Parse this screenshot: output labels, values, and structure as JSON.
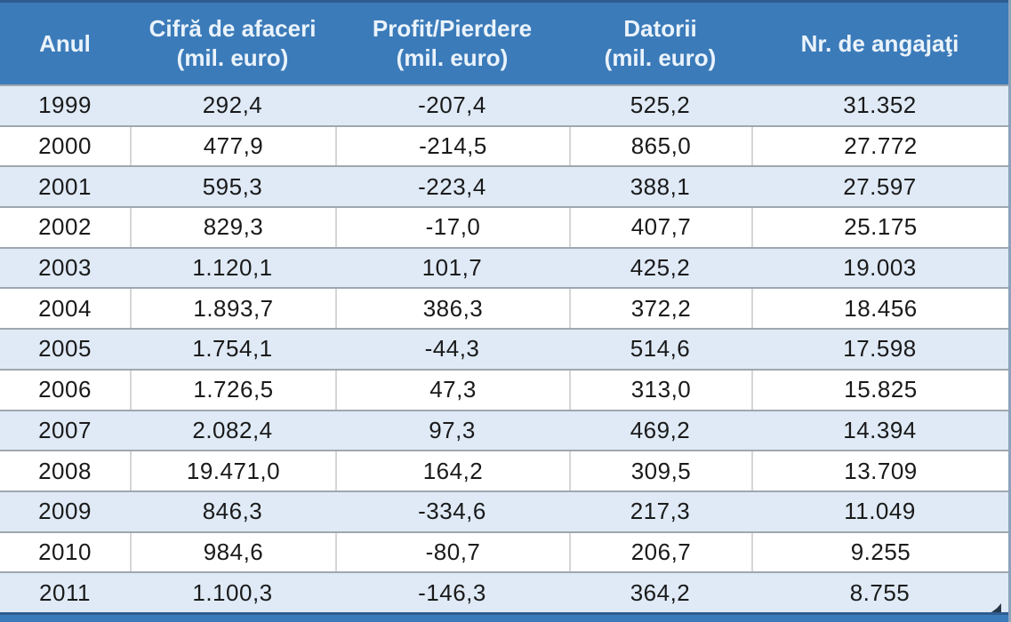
{
  "table": {
    "columns": [
      {
        "label": "Anul",
        "sub": ""
      },
      {
        "label": "Cifră de afaceri",
        "sub": "(mil. euro)"
      },
      {
        "label": "Profit/Pierdere",
        "sub": "(mil. euro)"
      },
      {
        "label": "Datorii",
        "sub": "(mil. euro)"
      },
      {
        "label": "Nr. de angajaţi",
        "sub": ""
      }
    ],
    "rows": [
      [
        "1999",
        "292,4",
        "-207,4",
        "525,2",
        "31.352"
      ],
      [
        "2000",
        "477,9",
        "-214,5",
        "865,0",
        "27.772"
      ],
      [
        "2001",
        "595,3",
        "-223,4",
        "388,1",
        "27.597"
      ],
      [
        "2002",
        "829,3",
        "-17,0",
        "407,7",
        "25.175"
      ],
      [
        "2003",
        "1.120,1",
        "101,7",
        "425,2",
        "19.003"
      ],
      [
        "2004",
        "1.893,7",
        "386,3",
        "372,2",
        "18.456"
      ],
      [
        "2005",
        "1.754,1",
        "-44,3",
        "514,6",
        "17.598"
      ],
      [
        "2006",
        "1.726,5",
        "47,3",
        "313,0",
        "15.825"
      ],
      [
        "2007",
        "2.082,4",
        "97,3",
        "469,2",
        "14.394"
      ],
      [
        "2008",
        "19.471,0",
        "164,2",
        "309,5",
        "13.709"
      ],
      [
        "2009",
        "846,3",
        "-334,6",
        "217,3",
        "11.049"
      ],
      [
        "2010",
        "984,6",
        "-80,7",
        "206,7",
        "9.255"
      ],
      [
        "2011",
        "1.100,3",
        "-146,3",
        "364,2",
        "8.755"
      ]
    ]
  },
  "chart_data": {
    "type": "table",
    "title": "",
    "columns": [
      "Anul",
      "Cifră de afaceri (mil. euro)",
      "Profit/Pierdere (mil. euro)",
      "Datorii (mil. euro)",
      "Nr. de angajaţi"
    ],
    "categories": [
      1999,
      2000,
      2001,
      2002,
      2003,
      2004,
      2005,
      2006,
      2007,
      2008,
      2009,
      2010,
      2011
    ],
    "series": [
      {
        "name": "Cifră de afaceri (mil. euro)",
        "values": [
          292.4,
          477.9,
          595.3,
          829.3,
          1120.1,
          1893.7,
          1754.1,
          1726.5,
          2082.4,
          19471.0,
          846.3,
          984.6,
          1100.3
        ]
      },
      {
        "name": "Profit/Pierdere (mil. euro)",
        "values": [
          -207.4,
          -214.5,
          -223.4,
          -17.0,
          101.7,
          386.3,
          -44.3,
          47.3,
          97.3,
          164.2,
          -334.6,
          -80.7,
          -146.3
        ]
      },
      {
        "name": "Datorii (mil. euro)",
        "values": [
          525.2,
          865.0,
          388.1,
          407.7,
          425.2,
          372.2,
          514.6,
          313.0,
          469.2,
          309.5,
          217.3,
          206.7,
          364.2
        ]
      },
      {
        "name": "Nr. de angajaţi",
        "values": [
          31352,
          27772,
          27597,
          25175,
          19003,
          18456,
          17598,
          15825,
          14394,
          13709,
          11049,
          9255,
          8755
        ]
      }
    ],
    "layout": {
      "header_position": "top",
      "zebra_striping": true,
      "grid": true
    }
  },
  "colors": {
    "header_bg": "#3C7BB9",
    "header_text": "#EAF3FB",
    "row_alt_bg": "#DFEAF6",
    "row_bg": "#FFFFFF",
    "row_border": "#9FA7AF",
    "cell_divider": "#D6D6D6",
    "outer_border": "#2E5C90",
    "right_border": "#8BA3BC",
    "text": "#1A1A1A"
  }
}
